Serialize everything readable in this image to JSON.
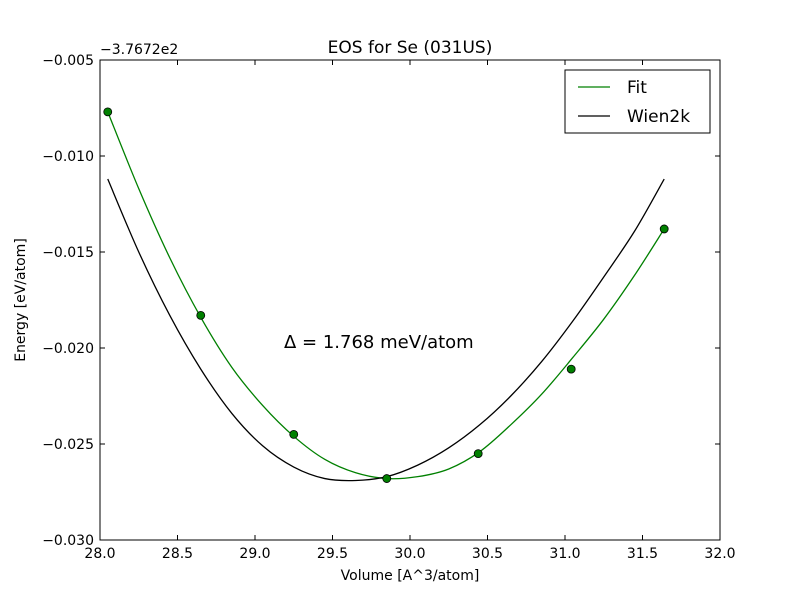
{
  "chart_data": {
    "type": "line",
    "title": "EOS for Se (031US)",
    "xlabel": "Volume [A^3/atom]",
    "ylabel": "Energy [eV/atom]",
    "offset_label": "−3.7672e2",
    "annotation": "Δ = 1.768 meV/atom",
    "xlim": [
      28.0,
      32.0
    ],
    "ylim": [
      -0.03,
      -0.005
    ],
    "xticks": [
      28.0,
      28.5,
      29.0,
      29.5,
      30.0,
      30.5,
      31.0,
      31.5,
      32.0
    ],
    "xtick_labels": [
      "28.0",
      "28.5",
      "29.0",
      "29.5",
      "30.0",
      "30.5",
      "31.0",
      "31.5",
      "32.0"
    ],
    "yticks": [
      -0.03,
      -0.025,
      -0.02,
      -0.015,
      -0.01,
      -0.005
    ],
    "ytick_labels": [
      "−0.030",
      "−0.025",
      "−0.020",
      "−0.015",
      "−0.010",
      "−0.005"
    ],
    "grid": false,
    "legend_position": "top-right",
    "series": [
      {
        "name": "Fit",
        "color": "#008000",
        "kind": "line",
        "x": [
          28.05,
          28.25,
          28.45,
          28.65,
          28.85,
          29.05,
          29.25,
          29.45,
          29.65,
          29.85,
          30.05,
          30.25,
          30.45,
          30.65,
          30.85,
          31.05,
          31.25,
          31.45,
          31.64
        ],
        "y": [
          -0.0077,
          -0.0117,
          -0.0153,
          -0.0184,
          -0.021,
          -0.023,
          -0.0246,
          -0.0258,
          -0.0265,
          -0.0268,
          -0.0267,
          -0.0263,
          -0.0254,
          -0.024,
          -0.0224,
          -0.0205,
          -0.0185,
          -0.0162,
          -0.0138
        ]
      },
      {
        "name": "Wien2k",
        "color": "#000000",
        "kind": "line",
        "x": [
          28.05,
          28.25,
          28.45,
          28.65,
          28.85,
          29.05,
          29.25,
          29.45,
          29.65,
          29.85,
          30.05,
          30.25,
          30.45,
          30.65,
          30.85,
          31.05,
          31.25,
          31.45,
          31.64
        ],
        "y": [
          -0.0112,
          -0.015,
          -0.0183,
          -0.0211,
          -0.0234,
          -0.0251,
          -0.0262,
          -0.0268,
          -0.0269,
          -0.0267,
          -0.0261,
          -0.0252,
          -0.024,
          -0.0225,
          -0.0207,
          -0.0186,
          -0.0163,
          -0.0139,
          -0.0112
        ]
      },
      {
        "name": "data-points",
        "color": "#008000",
        "kind": "scatter",
        "x": [
          28.05,
          28.65,
          29.25,
          29.85,
          30.44,
          31.04,
          31.64
        ],
        "y": [
          -0.0077,
          -0.0183,
          -0.0245,
          -0.0268,
          -0.0255,
          -0.0211,
          -0.0138
        ]
      }
    ],
    "legend": [
      {
        "label": "Fit",
        "color": "#008000"
      },
      {
        "label": "Wien2k",
        "color": "#000000"
      }
    ]
  }
}
